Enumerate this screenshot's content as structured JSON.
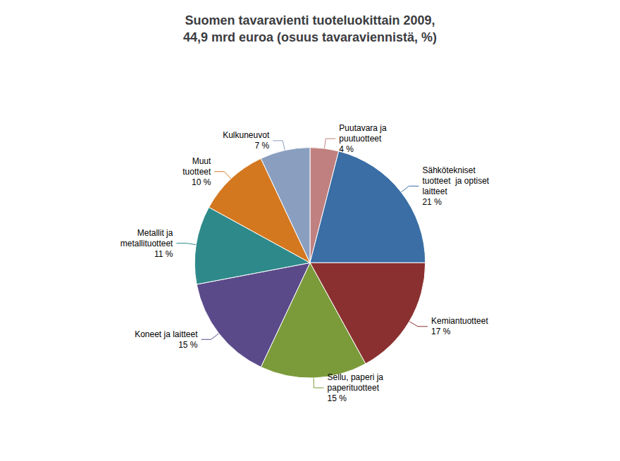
{
  "chart_data": {
    "type": "pie",
    "title": "Suomen tavaravienti tuoteluokittain 2009,\n44,9 mrd euroa (osuus tavaraviennistä, %)",
    "categories": [
      "Puutavara ja\npuutuotteet\n4 %",
      "Sähkötekniset\ntuotteet  ja optiset\nlaitteet\n21 %",
      "Kemiantuotteet\n17 %",
      "Sellu, paperi ja\npaperituotteet\n15 %",
      "Koneet ja laitteet\n15 %",
      "Metallit ja\nmetallituotteet\n11 %",
      "Muut\ntuotteet\n10 %",
      "Kulkuneuvot\n7 %"
    ],
    "values": [
      4,
      21,
      17,
      15,
      15,
      11,
      10,
      7
    ],
    "colors": [
      "#C08080",
      "#3A6EA5",
      "#8B3030",
      "#7B9B3A",
      "#5B4A8A",
      "#2E8A8A",
      "#D47820",
      "#8A9FBF"
    ]
  }
}
